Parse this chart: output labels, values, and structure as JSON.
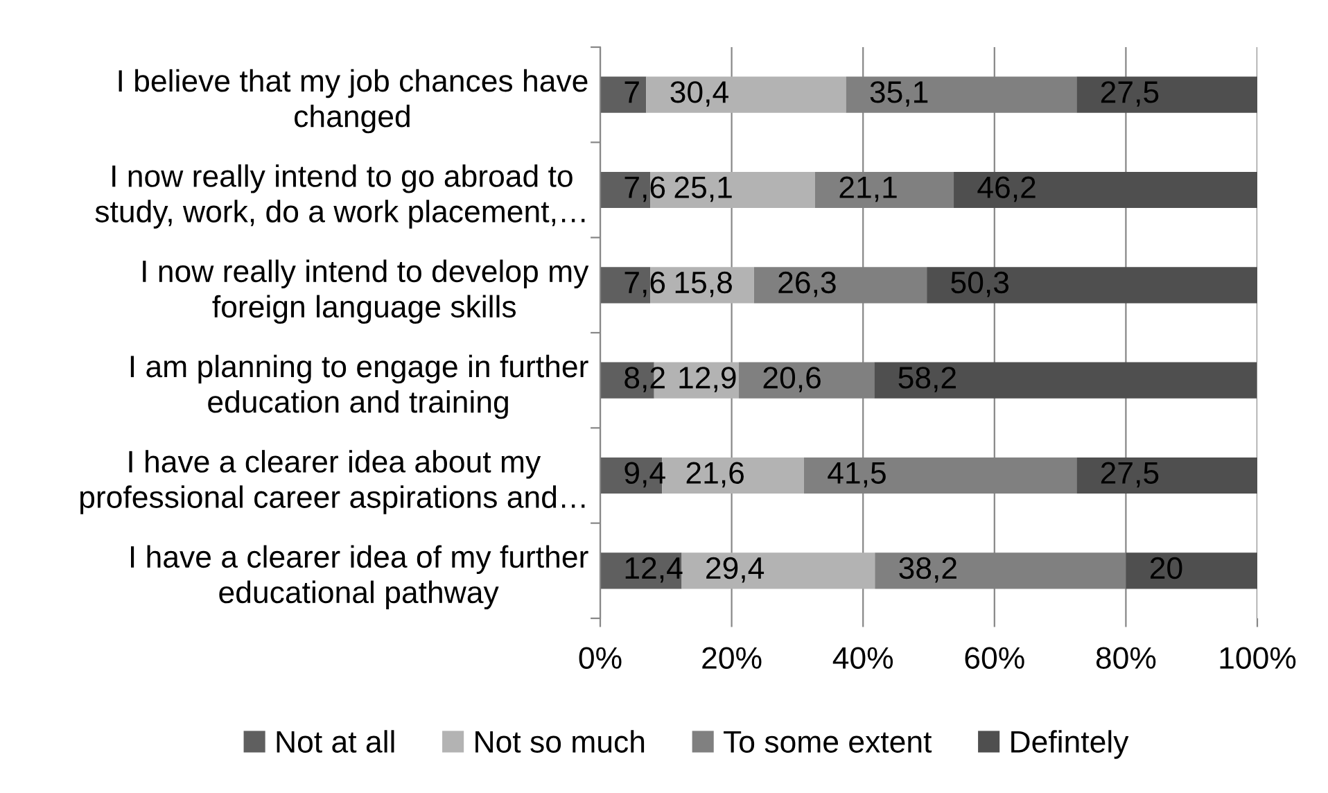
{
  "chart_data": {
    "type": "bar",
    "orientation": "horizontal",
    "stacked": true,
    "categories": [
      "I believe that my job chances have\nchanged",
      "I now really intend to go abroad to\nstudy, work, do a work placement,…",
      "I now really intend to develop my\nforeign language skills",
      "I am planning to engage in further\neducation and training",
      "I have a clearer idea about my\nprofessional career aspirations and…",
      "I have a clearer idea of my further\neducational pathway"
    ],
    "series": [
      {
        "name": "Not at all",
        "color": "#5f5f5f",
        "values": [
          7,
          7.6,
          7.6,
          8.2,
          9.4,
          12.4
        ],
        "value_labels": [
          "7",
          "7,6",
          "7,6",
          "8,2",
          "9,4",
          "12,4"
        ]
      },
      {
        "name": "Not so much",
        "color": "#b3b3b3",
        "values": [
          30.4,
          25.1,
          15.8,
          12.9,
          21.6,
          29.4
        ],
        "value_labels": [
          "30,4",
          "25,1",
          "15,8",
          "12,9",
          "21,6",
          "29,4"
        ]
      },
      {
        "name": "To some extent",
        "color": "#808080",
        "values": [
          35.1,
          21.1,
          26.3,
          20.6,
          41.5,
          38.2
        ],
        "value_labels": [
          "35,1",
          "21,1",
          "26,3",
          "20,6",
          "41,5",
          "38,2"
        ]
      },
      {
        "name": "Defintely",
        "color": "#4f4f4f",
        "values": [
          27.5,
          46.2,
          50.3,
          58.2,
          27.5,
          20
        ],
        "value_labels": [
          "27,5",
          "46,2",
          "50,3",
          "58,2",
          "27,5",
          "20"
        ]
      }
    ],
    "xlim": [
      0,
      100
    ],
    "xticks": [
      {
        "value": 0,
        "label": "0%"
      },
      {
        "value": 20,
        "label": "20%"
      },
      {
        "value": 40,
        "label": "40%"
      },
      {
        "value": 60,
        "label": "60%"
      },
      {
        "value": 80,
        "label": "80%"
      },
      {
        "value": 100,
        "label": "100%"
      }
    ],
    "grid": "x",
    "legend": "bottom"
  }
}
